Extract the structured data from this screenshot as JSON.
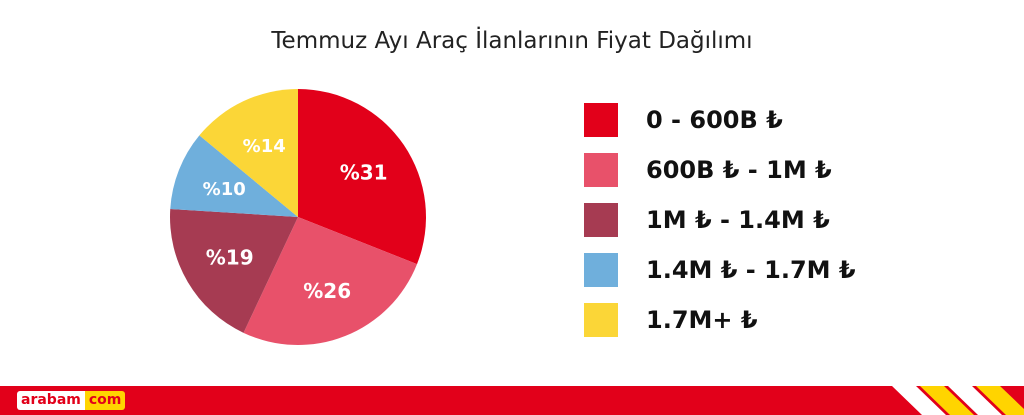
{
  "chart_data": {
    "type": "pie",
    "title": "Temmuz Ayı Araç İlanlarının Fiyat Dağılımı",
    "slices": [
      {
        "label": "0 - 600B ₺",
        "value": 31,
        "display": "%31",
        "color": "#e2001a"
      },
      {
        "label": "600B ₺ - 1M ₺",
        "value": 26,
        "display": "%26",
        "color": "#e8516a"
      },
      {
        "label": "1M ₺ - 1.4M ₺",
        "value": 19,
        "display": "%19",
        "color": "#a63b52"
      },
      {
        "label": "1.4M ₺ - 1.7M ₺",
        "value": 10,
        "display": "%10",
        "color": "#6fafdc"
      },
      {
        "label": "1.7M+ ₺",
        "value": 14,
        "display": "%14",
        "color": "#fbd637"
      }
    ],
    "legend_position": "right"
  },
  "footer": {
    "logo_left": "arabam",
    "logo_right": "com",
    "band_color": "#e2001a",
    "accent_color": "#ffd400"
  }
}
